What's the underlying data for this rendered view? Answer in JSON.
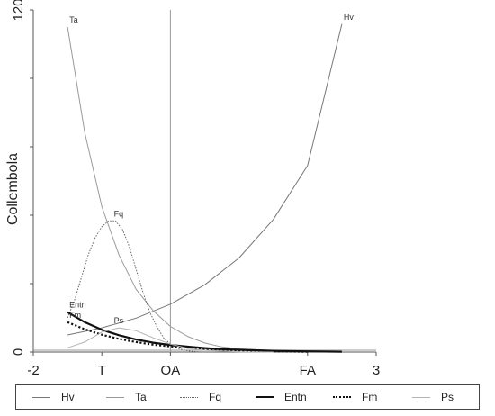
{
  "chart_data": {
    "type": "line",
    "title": "",
    "xlabel": "",
    "ylabel": "Collembola",
    "xlim": [
      -2,
      3
    ],
    "ylim": [
      0,
      120
    ],
    "x_ticks": [
      {
        "value": -2,
        "label": "-2"
      },
      {
        "value": -1,
        "label": "T"
      },
      {
        "value": 0,
        "label": "OA"
      },
      {
        "value": 2,
        "label": "FA"
      },
      {
        "value": 3,
        "label": "3"
      }
    ],
    "y_ticks": [
      {
        "value": 0,
        "label": "0"
      },
      {
        "value": 120,
        "label": "120"
      }
    ],
    "vertical_reference_x": 0,
    "horizontal_reference_y": 0,
    "grid": false,
    "legend_position": "bottom",
    "series": [
      {
        "name": "Hv",
        "color": "#777777",
        "style": "solid",
        "width": 1,
        "x": [
          -1.5,
          -1.0,
          -0.5,
          0.0,
          0.5,
          1.0,
          1.5,
          2.0,
          2.5
        ],
        "y": [
          6,
          8.5,
          11.9,
          16.8,
          23.6,
          33,
          46.5,
          65.4,
          115
        ]
      },
      {
        "name": "Ta",
        "color": "#9a9a9a",
        "style": "solid",
        "width": 1,
        "x": [
          -1.5,
          -1.25,
          -1.0,
          -0.75,
          -0.5,
          -0.25,
          0.0,
          0.25,
          0.5,
          0.75,
          1.0,
          1.5,
          2.0
        ],
        "y": [
          114,
          77,
          51,
          34,
          22,
          14.5,
          9,
          5.5,
          3.2,
          1.8,
          1.1,
          0.5,
          0.2
        ]
      },
      {
        "name": "Fq",
        "color": "#666666",
        "style": "dotted",
        "width": 1,
        "x": [
          -1.5,
          -1.4,
          -1.3,
          -1.2,
          -1.1,
          -1.0,
          -0.9,
          -0.8,
          -0.7,
          -0.6,
          -0.5,
          -0.4,
          -0.3,
          -0.2,
          -0.1,
          0.0,
          0.1,
          0.2,
          0.3,
          0.4,
          0.5
        ],
        "y": [
          12,
          18,
          26,
          34,
          40,
          44,
          46,
          46,
          43,
          37,
          29,
          21,
          14,
          9,
          5,
          2.8,
          1.4,
          0.7,
          0.3,
          0.1,
          0
        ]
      },
      {
        "name": "Entn",
        "color": "#111111",
        "style": "solid",
        "width": 2.2,
        "x": [
          -1.5,
          -1.25,
          -1.0,
          -0.75,
          -0.5,
          -0.25,
          0.0,
          0.25,
          0.5,
          0.75,
          1.0,
          1.5,
          2.0,
          2.5
        ],
        "y": [
          14,
          10.5,
          7.8,
          5.9,
          4.4,
          3.3,
          2.5,
          1.9,
          1.4,
          1.0,
          0.8,
          0.45,
          0.25,
          0.1
        ]
      },
      {
        "name": "Fm",
        "color": "#111111",
        "style": "dotted",
        "width": 2.2,
        "x": [
          -1.5,
          -1.25,
          -1.0,
          -0.75,
          -0.5,
          -0.25,
          0.0,
          0.25,
          0.5,
          0.75,
          1.0,
          1.5,
          2.0
        ],
        "y": [
          10.5,
          8,
          6.1,
          4.6,
          3.5,
          2.6,
          2.0,
          1.5,
          1.1,
          0.8,
          0.6,
          0.3,
          0.1
        ]
      },
      {
        "name": "Ps",
        "color": "#b3b3b3",
        "style": "solid",
        "width": 1,
        "x": [
          -1.5,
          -1.25,
          -1.0,
          -0.75,
          -0.5,
          -0.25,
          0.0,
          0.25,
          0.5,
          1.0,
          1.5
        ],
        "y": [
          1.5,
          3.5,
          7,
          8.5,
          7.5,
          5,
          2.8,
          1.3,
          0.6,
          0.1,
          0
        ]
      }
    ],
    "annotations": [
      {
        "text": "Hv",
        "series": "Hv",
        "x": 2.5,
        "y": 115
      },
      {
        "text": "Ta",
        "series": "Ta",
        "x": -1.5,
        "y": 114
      },
      {
        "text": "Fq",
        "series": "Fq",
        "x": -0.85,
        "y": 46
      },
      {
        "text": "Entn",
        "series": "Entn",
        "x": -1.5,
        "y": 14
      },
      {
        "text": "Fm",
        "series": "Fm",
        "x": -1.5,
        "y": 10.5
      },
      {
        "text": "Ps",
        "series": "Ps",
        "x": -0.85,
        "y": 8.5
      }
    ]
  }
}
